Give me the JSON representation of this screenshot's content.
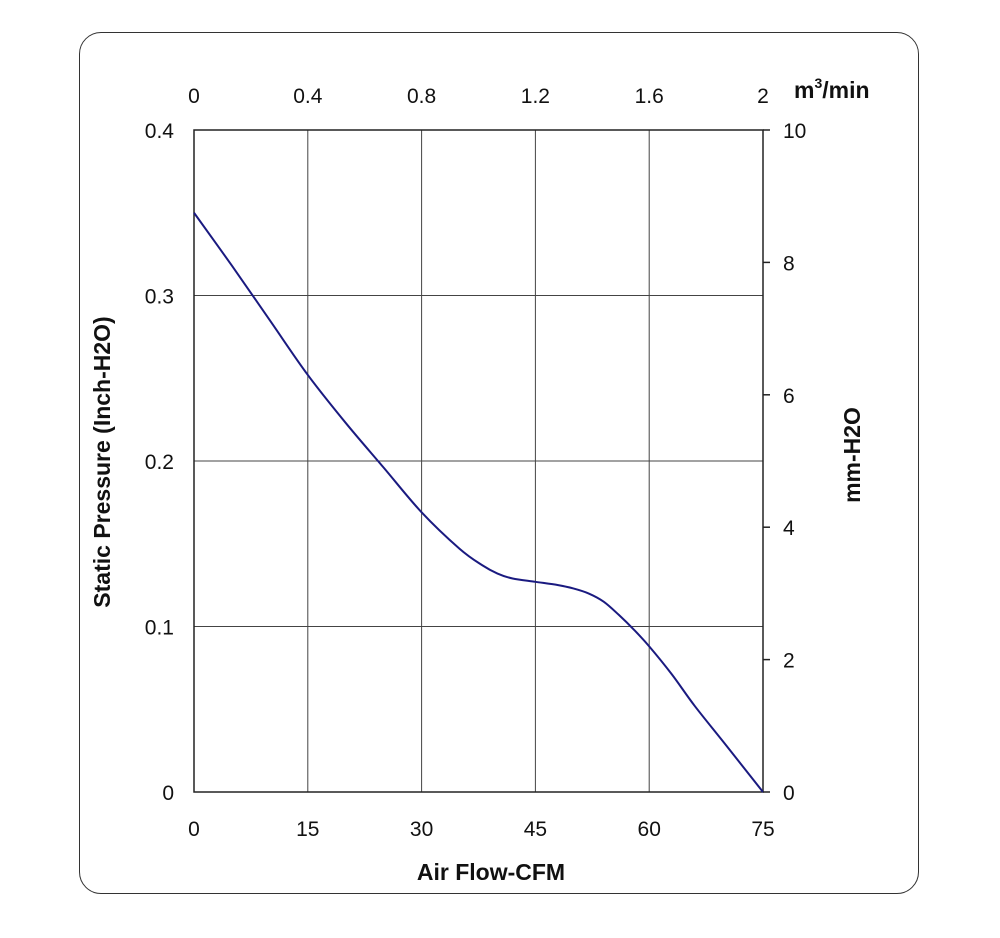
{
  "chart_data": {
    "type": "line",
    "xlabel": "Air Flow-CFM",
    "ylabel": "Static Pressure (Inch-H2O)",
    "y2label": "mm-H2O",
    "x2label_base": "m",
    "x2label_sup": "3",
    "x2label_rest": "/min",
    "xlim": [
      0,
      75
    ],
    "ylim": [
      0,
      0.4
    ],
    "x2lim": [
      0,
      2
    ],
    "y2lim": [
      0,
      10
    ],
    "x_ticks": [
      "0",
      "15",
      "30",
      "45",
      "60",
      "75"
    ],
    "y_ticks": [
      "0",
      "0.1",
      "0.2",
      "0.3",
      "0.4"
    ],
    "x2_ticks": [
      "0",
      "0.4",
      "0.8",
      "1.2",
      "1.6",
      "2"
    ],
    "y2_ticks": [
      "0",
      "2",
      "4",
      "6",
      "8",
      "10"
    ],
    "grid": true,
    "line_color": "#1a1a80",
    "series": [
      {
        "x": [
          0,
          5,
          10,
          15,
          20,
          25,
          30,
          35,
          38,
          40,
          42,
          45,
          48,
          50,
          52,
          54,
          56,
          58,
          60,
          63,
          66,
          70,
          75
        ],
        "y": [
          0.35,
          0.318,
          0.285,
          0.252,
          0.223,
          0.196,
          0.169,
          0.147,
          0.137,
          0.132,
          0.129,
          0.127,
          0.125,
          0.123,
          0.12,
          0.115,
          0.107,
          0.098,
          0.088,
          0.071,
          0.052,
          0.029,
          0.0
        ]
      }
    ]
  }
}
